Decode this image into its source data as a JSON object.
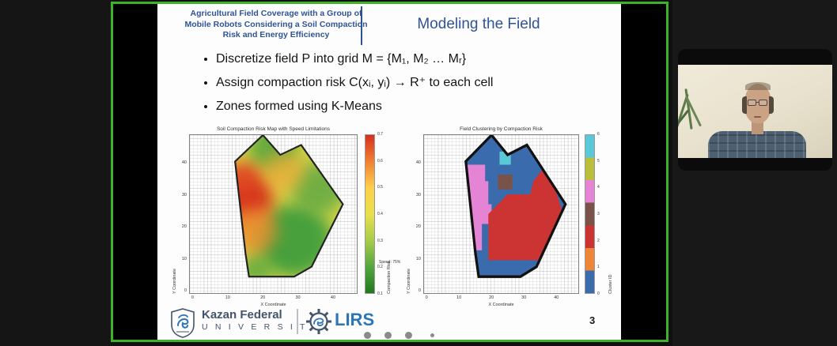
{
  "window": {
    "background": "#141414",
    "share_border_color": "#3db32a"
  },
  "header": {
    "presentation_title": "Agricultural Field Coverage with a Group of Mobile Robots Considering a Soil Compaction Risk and Energy Efficiency",
    "slide_title": "Modeling the Field",
    "accent_color": "#2f5496"
  },
  "bullets": [
    "Discretize field P into grid M = {M₁, M₂ … Mᵣ}",
    "Assign compaction risk C(xᵢ, yᵢ) → R⁺  to each cell",
    "Zones formed using K-Means"
  ],
  "chart_data": [
    {
      "type": "heatmap",
      "title": "Soil Compaction Risk Map with Speed Limitations",
      "xlabel": "X Coordinate",
      "ylabel": "Y Coordinate",
      "xticks": [
        0,
        10,
        20,
        30,
        40
      ],
      "yticks": [
        0,
        10,
        20,
        30,
        40
      ],
      "xlim": [
        -1,
        47
      ],
      "ylim": [
        -1,
        49
      ],
      "grid": true,
      "colorbar": {
        "label": "Compaction Risk",
        "ticks": [
          0.1,
          0.2,
          0.3,
          0.4,
          0.5,
          0.6,
          0.7
        ],
        "gradient": [
          "#1e7a1e",
          "#55a63e",
          "#a8cc48",
          "#e8e04a",
          "#fdd04a",
          "#f08030",
          "#d62f1f"
        ],
        "annotation": "Speed: 75%",
        "annotation_pos": 0.27
      },
      "field_polygon": [
        [
          13,
          40
        ],
        [
          21,
          48
        ],
        [
          26,
          42
        ],
        [
          32,
          45
        ],
        [
          44,
          27
        ],
        [
          35,
          8
        ],
        [
          30,
          5
        ],
        [
          17,
          5
        ],
        [
          16,
          12
        ]
      ],
      "base_color": "#ddd84a",
      "heat_blobs": [
        {
          "cx": 30,
          "cy": 16,
          "r": 11,
          "color": "#3f9e3c",
          "opacity": 0.95,
          "value": "low risk ≈ 0.15"
        },
        {
          "cx": 24,
          "cy": 44,
          "r": 7,
          "color": "#55a63e",
          "opacity": 0.9,
          "value": "low risk ≈ 0.2"
        },
        {
          "cx": 37,
          "cy": 32,
          "r": 8,
          "color": "#59a542",
          "opacity": 0.8,
          "value": "low risk ≈ 0.2"
        },
        {
          "cx": 19,
          "cy": 7,
          "r": 5,
          "color": "#55a63e",
          "opacity": 0.8,
          "value": "low risk ≈ 0.2"
        },
        {
          "cx": 16,
          "cy": 29,
          "r": 8,
          "color": "#d62f1f",
          "opacity": 0.95,
          "value": "high risk ≈ 0.65"
        },
        {
          "cx": 15,
          "cy": 35,
          "r": 5,
          "color": "#e04a20",
          "opacity": 0.85,
          "value": "high risk ≈ 0.6"
        },
        {
          "cx": 18,
          "cy": 19,
          "r": 7,
          "color": "#ee8c2e",
          "opacity": 0.8,
          "value": "medium risk ≈ 0.45"
        },
        {
          "cx": 27,
          "cy": 37,
          "r": 6,
          "color": "#f0a838",
          "opacity": 0.7,
          "value": "medium risk ≈ 0.4"
        }
      ]
    },
    {
      "type": "heatmap",
      "title": "Field Clustering by Compaction Risk",
      "xlabel": "X Coordinate",
      "ylabel": "Y Coordinate",
      "xticks": [
        0,
        10,
        20,
        30,
        40
      ],
      "yticks": [
        0,
        10,
        20,
        30,
        40
      ],
      "xlim": [
        -1,
        47
      ],
      "ylim": [
        -1,
        49
      ],
      "grid": true,
      "colorbar": {
        "label": "Cluster ID",
        "ticks": [
          0,
          1,
          2,
          3,
          4,
          5,
          6
        ],
        "segments": [
          "#3a6cad",
          "#ef8536",
          "#cc3333",
          "#7a5348",
          "#e584d4",
          "#b9bf3b",
          "#5bc8d8"
        ]
      },
      "field_polygon": [
        [
          13,
          40
        ],
        [
          21,
          48
        ],
        [
          26,
          42
        ],
        [
          32,
          45
        ],
        [
          44,
          27
        ],
        [
          35,
          8
        ],
        [
          30,
          5
        ],
        [
          17,
          5
        ],
        [
          16,
          12
        ]
      ],
      "base_color": "#3a6cad",
      "outline_color": "#111111",
      "cluster_regions": [
        {
          "id": 4,
          "color": "#e584d4",
          "label": "cluster 4 (pink), west zone",
          "points": [
            [
              6,
              13
            ],
            [
              18,
              13
            ],
            [
              18,
              21
            ],
            [
              21,
              21
            ],
            [
              21,
              27
            ],
            [
              20,
              27
            ],
            [
              20,
              34
            ],
            [
              19,
              34
            ],
            [
              19,
              39
            ],
            [
              6,
              39
            ]
          ]
        },
        {
          "id": 2,
          "color": "#cc3333",
          "label": "cluster 2 (red), central-east zone",
          "points": [
            [
              20,
              10
            ],
            [
              36,
              10
            ],
            [
              43,
              25
            ],
            [
              41,
              31
            ],
            [
              38,
              39
            ],
            [
              34,
              34
            ],
            [
              33,
              30
            ],
            [
              26,
              30
            ],
            [
              23,
              27
            ],
            [
              20,
              24
            ],
            [
              20,
              16
            ]
          ]
        },
        {
          "id": 6,
          "color": "#5bc8d8",
          "label": "cluster 6 (cyan), small north patch",
          "points": [
            [
              23.5,
              39
            ],
            [
              27,
              39
            ],
            [
              27,
              43
            ],
            [
              23.5,
              43
            ]
          ]
        },
        {
          "id": 3,
          "color": "#7a5348",
          "label": "cluster 3 (brown), small central patch",
          "points": [
            [
              23,
              31.5
            ],
            [
              27.5,
              31.5
            ],
            [
              27.5,
              36
            ],
            [
              23,
              36
            ]
          ]
        }
      ]
    }
  ],
  "footer": {
    "university_name": "Kazan Federal",
    "university_sub": "U N I V E R S I T Y",
    "lab_name": "LIRS",
    "page_number": "3",
    "progress_dots": 4
  },
  "webcam": {
    "participant_description": "man with glasses wearing a plaid shirt, beige wall, plant at left"
  },
  "icons": {
    "kfu_shield": "shield-with-dragon",
    "lirs_gear": "gear-with-dragon"
  }
}
